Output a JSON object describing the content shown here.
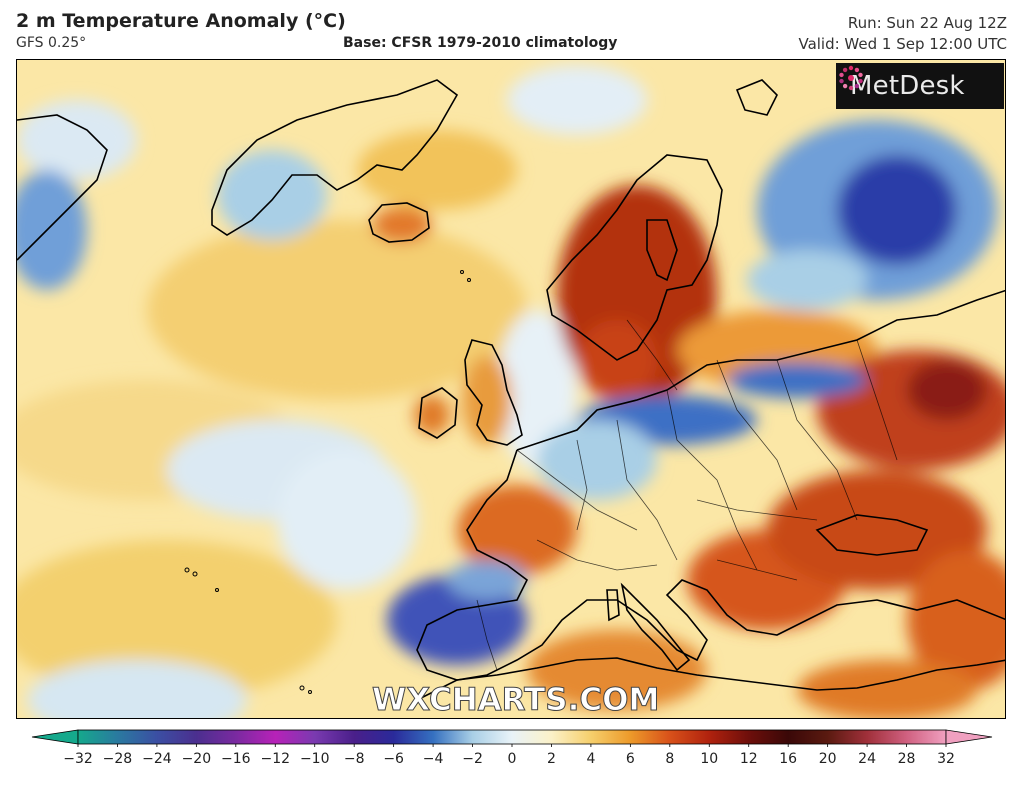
{
  "header": {
    "title": "2 m Temperature Anomaly (°C)",
    "model": "GFS 0.25°",
    "base": "Base: CFSR 1979-2010 climatology",
    "run": "Run: Sun 22 Aug 12Z",
    "valid": "Valid: Wed 1 Sep 12:00 UTC"
  },
  "branding": {
    "logo_text": "MetDesk",
    "watermark": "WXCHARTS.COM"
  },
  "legend": {
    "ticks": [
      "−32",
      "−28",
      "−24",
      "−20",
      "−16",
      "−12",
      "−10",
      "−8",
      "−6",
      "−4",
      "−2",
      "0",
      "2",
      "4",
      "6",
      "8",
      "10",
      "12",
      "16",
      "20",
      "24",
      "28",
      "32"
    ],
    "colors": [
      "#15a98c",
      "#2a7aa0",
      "#3b4fa3",
      "#4b2f8f",
      "#7a2aa0",
      "#b722b8",
      "#7a3ab0",
      "#4a1f8a",
      "#2a2a9a",
      "#3570c0",
      "#a9cfe6",
      "#e9f3f8",
      "#fbf1c8",
      "#f6cf6c",
      "#ed9a2a",
      "#d8511a",
      "#b0220e",
      "#6e0f0b",
      "#3a0808",
      "#5a1a10",
      "#a0303a",
      "#d06080",
      "#f0a0c0"
    ]
  },
  "colors": {
    "ocean_neutral": "#fbeec0",
    "warm": "#f2c35a",
    "hot": "#e0772a",
    "very_hot": "#b3300f",
    "cool": "#dbe9f3",
    "cold": "#5a8fd0",
    "very_cold": "#2a3ea8"
  }
}
